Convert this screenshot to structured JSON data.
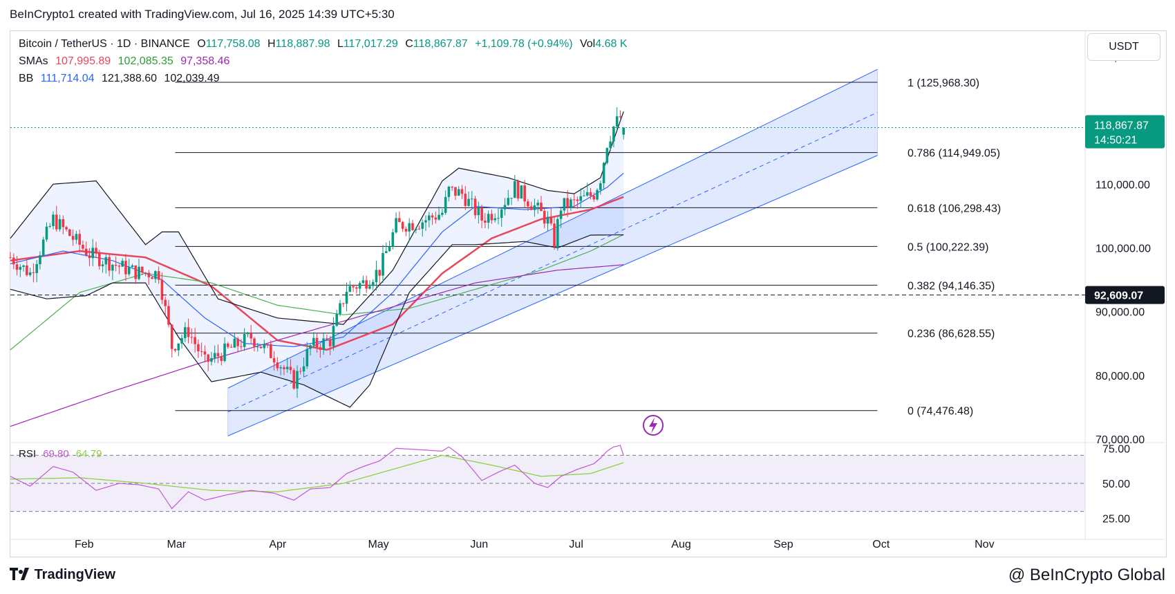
{
  "header": {
    "caption": "BeInCrypto1 created with TradingView.com, Jul 16, 2025 14:39 UTC+5:30"
  },
  "legend": {
    "symbol": "Bitcoin / TetherUS · 1D · BINANCE",
    "o_label": "O",
    "o": "117,758.08",
    "h_label": "H",
    "h": "118,887.98",
    "l_label": "L",
    "l": "117,017.29",
    "c_label": "C",
    "c": "118,867.87",
    "change": "+1,109.78 (+0.94%)",
    "vol_label": "Vol",
    "vol": "4.68 K",
    "sma_label": "SMAs",
    "sma1": "107,995.89",
    "sma2": "102,085.35",
    "sma3": "97,358.46",
    "bb_label": "BB",
    "bb1": "111,714.04",
    "bb2": "121,388.60",
    "bb3": "102,039.49",
    "rsi_label": "RSI",
    "rsi1": "69.80",
    "rsi2": "64.79"
  },
  "unit_selector": "USDT",
  "price_badge": {
    "price": "118,867.87",
    "countdown": "14:50:21",
    "color": "#089981"
  },
  "level_badge": {
    "price": "92,609.07"
  },
  "colors": {
    "up": "#089981",
    "down": "#f23645",
    "sma1": "#e8465a",
    "sma2": "#4caf50",
    "sma3": "#9c27b0",
    "bb_basis": "#2962ff",
    "bb_band": "#131722",
    "rsi": "#c356d6",
    "rsi_ma": "#8bd13f",
    "channel": "#2962ff"
  },
  "footer": {
    "logo_text": "TradingView",
    "watermark": "@ BeInCrypto Global"
  },
  "chart_data": [
    {
      "type": "candlestick",
      "title": "Bitcoin / TetherUS · 1D · BINANCE",
      "ylim": [
        70000,
        134000
      ],
      "y_ticks": [
        "130,000.00",
        "110,000.00",
        "100,000.00",
        "90,000.00",
        "80,000.00",
        "70,000.00"
      ],
      "y_tick_values": [
        130000,
        110000,
        100000,
        90000,
        80000,
        70000
      ],
      "x_tick_labels": [
        "Feb",
        "Mar",
        "Apr",
        "May",
        "Jun",
        "Jul",
        "Aug",
        "Sep",
        "Oct",
        "Nov"
      ],
      "x_tick_days": [
        31,
        59,
        90,
        120,
        151,
        181,
        212,
        243,
        273,
        304
      ],
      "x_range_days": [
        9,
        335
      ],
      "series": [
        {
          "name": "BTC close (approx., key points)",
          "points": [
            [
              9,
              98500
            ],
            [
              15,
              96000
            ],
            [
              22,
              104500
            ],
            [
              27,
              102000
            ],
            [
              33,
              99000
            ],
            [
              40,
              97500
            ],
            [
              47,
              96200
            ],
            [
              54,
              96000
            ],
            [
              58,
              84500
            ],
            [
              63,
              87000
            ],
            [
              68,
              82000
            ],
            [
              75,
              84000
            ],
            [
              82,
              86000
            ],
            [
              89,
              83000
            ],
            [
              95,
              79000
            ],
            [
              100,
              84500
            ],
            [
              106,
              85500
            ],
            [
              111,
              93500
            ],
            [
              116,
              94500
            ],
            [
              121,
              96500
            ],
            [
              126,
              103500
            ],
            [
              133,
              104000
            ],
            [
              140,
              105500
            ],
            [
              142,
              109000
            ],
            [
              146,
              108500
            ],
            [
              152,
              104500
            ],
            [
              157,
              106000
            ],
            [
              162,
              109500
            ],
            [
              168,
              106500
            ],
            [
              172,
              104200
            ],
            [
              174,
              101000
            ],
            [
              176,
              106500
            ],
            [
              181,
              107200
            ],
            [
              186,
              108500
            ],
            [
              188,
              111000
            ],
            [
              190,
              116500
            ],
            [
              192,
              119000
            ],
            [
              194,
              120500
            ],
            [
              195,
              118867.87
            ]
          ]
        },
        {
          "name": "SMAs 107,995.89",
          "points": [
            [
              9,
              98000
            ],
            [
              30,
              99500
            ],
            [
              50,
              98500
            ],
            [
              70,
              94000
            ],
            [
              90,
              85500
            ],
            [
              105,
              84000
            ],
            [
              125,
              88000
            ],
            [
              140,
              96000
            ],
            [
              155,
              101500
            ],
            [
              170,
              104500
            ],
            [
              185,
              106000
            ],
            [
              195,
              107995.89
            ]
          ]
        },
        {
          "name": "SMAs 102,085.35",
          "points": [
            [
              9,
              84000
            ],
            [
              30,
              93000
            ],
            [
              50,
              96000
            ],
            [
              70,
              94500
            ],
            [
              90,
              91000
            ],
            [
              110,
              89500
            ],
            [
              130,
              90500
            ],
            [
              150,
              93500
            ],
            [
              170,
              96500
            ],
            [
              185,
              99500
            ],
            [
              195,
              102085.35
            ]
          ]
        },
        {
          "name": "SMAs 97,358.46",
          "points": [
            [
              9,
              72000
            ],
            [
              40,
              77500
            ],
            [
              70,
              82500
            ],
            [
              100,
              87000
            ],
            [
              130,
              91500
            ],
            [
              150,
              94500
            ],
            [
              175,
              96500
            ],
            [
              195,
              97358.46
            ]
          ]
        },
        {
          "name": "BB 111,714.04",
          "points": [
            [
              9,
              97500
            ],
            [
              25,
              99500
            ],
            [
              40,
              98000
            ],
            [
              55,
              95000
            ],
            [
              68,
              89000
            ],
            [
              80,
              85000
            ],
            [
              95,
              84500
            ],
            [
              110,
              86000
            ],
            [
              125,
              93000
            ],
            [
              140,
              102500
            ],
            [
              150,
              106500
            ],
            [
              165,
              106000
            ],
            [
              180,
              106500
            ],
            [
              190,
              109500
            ],
            [
              195,
              111714.04
            ]
          ]
        },
        {
          "name": "BB 121,388.60",
          "points": [
            [
              9,
              101500
            ],
            [
              22,
              110000
            ],
            [
              35,
              110500
            ],
            [
              50,
              100500
            ],
            [
              55,
              102500
            ],
            [
              60,
              102500
            ],
            [
              72,
              92000
            ],
            [
              90,
              89000
            ],
            [
              110,
              88000
            ],
            [
              125,
              96500
            ],
            [
              140,
              110500
            ],
            [
              145,
              112500
            ],
            [
              160,
              111000
            ],
            [
              172,
              109000
            ],
            [
              180,
              108500
            ],
            [
              188,
              111000
            ],
            [
              195,
              121388.6
            ]
          ]
        },
        {
          "name": "BB 102,039.49",
          "points": [
            [
              9,
              93500
            ],
            [
              20,
              92000
            ],
            [
              32,
              92500
            ],
            [
              40,
              94500
            ],
            [
              50,
              94500
            ],
            [
              60,
              86000
            ],
            [
              70,
              79000
            ],
            [
              85,
              80500
            ],
            [
              98,
              78500
            ],
            [
              112,
              75000
            ],
            [
              118,
              78500
            ],
            [
              130,
              93000
            ],
            [
              143,
              100500
            ],
            [
              150,
              100500
            ],
            [
              165,
              101000
            ],
            [
              175,
              100000
            ],
            [
              185,
              102000
            ],
            [
              195,
              102039.49
            ]
          ]
        }
      ]
    },
    {
      "type": "line",
      "title": "Fibonacci retracement",
      "series": [
        {
          "name": "1 (125,968.30)",
          "values": [
            125968.3
          ]
        },
        {
          "name": "0.786 (114,949.05)",
          "values": [
            114949.05
          ]
        },
        {
          "name": "0.618 (106,298.43)",
          "values": [
            106298.43
          ]
        },
        {
          "name": "0.5 (100,222.39)",
          "values": [
            100222.39
          ]
        },
        {
          "name": "0.382 (94,146.35)",
          "values": [
            94146.35
          ]
        },
        {
          "name": "0.236 (86,628.55)",
          "values": [
            86628.55
          ]
        },
        {
          "name": "0 (74,476.48)",
          "values": [
            74476.48
          ]
        }
      ],
      "range_days": [
        59,
        272
      ]
    },
    {
      "type": "line",
      "title": "RSI",
      "ylim": [
        15,
        85
      ],
      "y_ticks": [
        "75.00",
        "50.00",
        "25.00"
      ],
      "y_tick_values": [
        75,
        50,
        25
      ],
      "series": [
        {
          "name": "RSI 69.80",
          "points": [
            [
              9,
              55
            ],
            [
              15,
              48
            ],
            [
              22,
              62
            ],
            [
              28,
              58
            ],
            [
              35,
              45
            ],
            [
              42,
              50
            ],
            [
              48,
              49
            ],
            [
              54,
              46
            ],
            [
              58,
              32
            ],
            [
              63,
              44
            ],
            [
              68,
              38
            ],
            [
              75,
              42
            ],
            [
              82,
              45
            ],
            [
              89,
              43
            ],
            [
              95,
              38
            ],
            [
              100,
              46
            ],
            [
              106,
              47
            ],
            [
              111,
              57
            ],
            [
              116,
              62
            ],
            [
              121,
              66
            ],
            [
              126,
              75
            ],
            [
              133,
              74
            ],
            [
              140,
              73
            ],
            [
              142,
              76
            ],
            [
              146,
              69
            ],
            [
              152,
              52
            ],
            [
              157,
              58
            ],
            [
              162,
              63
            ],
            [
              168,
              50
            ],
            [
              172,
              47
            ],
            [
              176,
              55
            ],
            [
              181,
              60
            ],
            [
              186,
              64
            ],
            [
              188,
              68
            ],
            [
              190,
              73
            ],
            [
              192,
              76
            ],
            [
              194,
              77
            ],
            [
              195,
              69.8
            ]
          ]
        },
        {
          "name": "RSI 64.79",
          "points": [
            [
              9,
              53
            ],
            [
              30,
              54
            ],
            [
              50,
              50
            ],
            [
              70,
              45
            ],
            [
              90,
              44
            ],
            [
              110,
              50
            ],
            [
              125,
              60
            ],
            [
              140,
              70
            ],
            [
              155,
              63
            ],
            [
              170,
              55
            ],
            [
              185,
              57
            ],
            [
              195,
              64.79
            ]
          ]
        }
      ]
    }
  ]
}
